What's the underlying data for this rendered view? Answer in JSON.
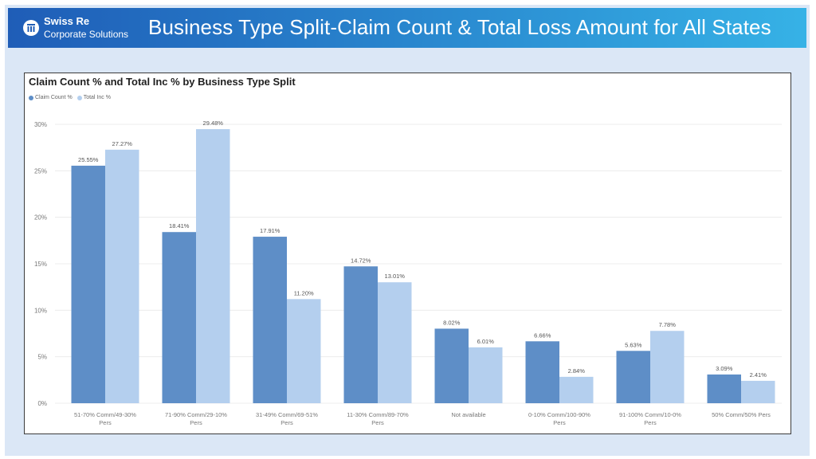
{
  "header": {
    "brand_name": "Swiss Re",
    "brand_sub": "Corporate Solutions",
    "title": "Business Type Split-Claim Count & Total Loss Amount for All States"
  },
  "colors": {
    "claim_count": "#5e8ec7",
    "total_inc": "#b4cfee",
    "header_start": "#1f5db7",
    "header_end": "#36b2e6",
    "background": "#dbe7f6"
  },
  "chart_data": {
    "type": "bar",
    "title": "Claim Count % and Total Inc % by Business Type Split",
    "xlabel": "",
    "ylabel": "",
    "ylim": [
      0,
      30
    ],
    "yticks": [
      "0%",
      "5%",
      "10%",
      "15%",
      "20%",
      "25%",
      "30%"
    ],
    "grid": true,
    "legend_position": "top-left",
    "categories": [
      [
        "51-70% Comm/49-30%",
        "Pers"
      ],
      [
        "71-90% Comm/29-10%",
        "Pers"
      ],
      [
        "31-49% Comm/69-51%",
        "Pers"
      ],
      [
        "11-30% Comm/89-70%",
        "Pers"
      ],
      [
        "Not available"
      ],
      [
        "0-10% Comm/100-90%",
        "Pers"
      ],
      [
        "91-100% Comm/10-0%",
        "Pers"
      ],
      [
        "50% Comm/50% Pers"
      ]
    ],
    "series": [
      {
        "name": "Claim Count %",
        "values": [
          25.55,
          18.41,
          17.91,
          14.72,
          8.02,
          6.66,
          5.63,
          3.09
        ],
        "labels": [
          "25.55%",
          "18.41%",
          "17.91%",
          "14.72%",
          "8.02%",
          "6.66%",
          "5.63%",
          "3.09%"
        ]
      },
      {
        "name": "Total Inc %",
        "values": [
          27.27,
          29.48,
          11.2,
          13.01,
          6.01,
          2.84,
          7.78,
          2.41
        ],
        "labels": [
          "27.27%",
          "29.48%",
          "11.20%",
          "13.01%",
          "6.01%",
          "2.84%",
          "7.78%",
          "2.41%"
        ]
      }
    ]
  }
}
